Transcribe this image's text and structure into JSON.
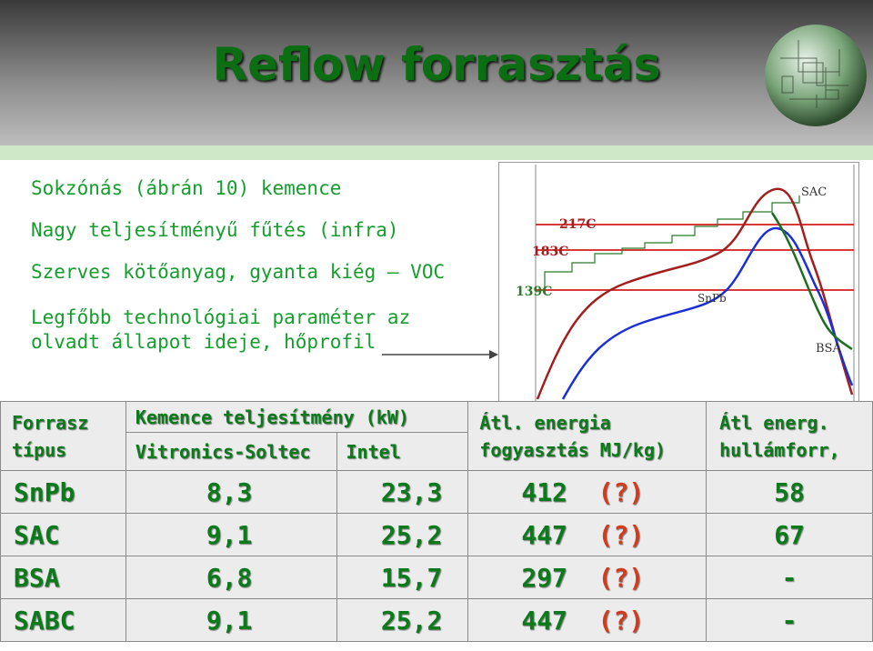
{
  "title": "Reflow forrasztás",
  "bullets": [
    "Sokzónás (ábrán 10) kemence",
    "Nagy teljesítményű fűtés (infra)",
    "Szerves kötőanyag, gyanta kiég – VOC",
    "Legfőbb technológiai paraméter az",
    "olvadt állapot ideje, hőprofil"
  ],
  "chart": {
    "temp_labels": [
      "139C",
      "183C",
      "217C"
    ],
    "curve_labels": [
      "SAC",
      "SnPb",
      "BSA"
    ],
    "colors": {
      "SAC": "#a31e1e",
      "SnPb": "#1b2fd6",
      "BSA": "#1f6e1f",
      "redline": "#d83a3a"
    }
  },
  "table": {
    "headers": {
      "col1_line1": "Forrasz",
      "col1_line2": "típus",
      "col2_top": "Kemence teljesítmény (kW)",
      "col2_sub1": "Vitronics-Soltec",
      "col2_sub2": "Intel",
      "col3_line1": "Átl. energia",
      "col3_line2": "fogyasztás MJ/kg)",
      "col4_line1": "Átl energ.",
      "col4_line2": "hullámforr,"
    },
    "rows": [
      {
        "type": "SnPb",
        "vitronics": "8,3",
        "intel": "23,3",
        "energy": "412",
        "q": "(?)",
        "wave": "58"
      },
      {
        "type": "SAC",
        "vitronics": "9,1",
        "intel": "25,2",
        "energy": "447",
        "q": "(?)",
        "wave": "67"
      },
      {
        "type": "BSA",
        "vitronics": "6,8",
        "intel": "15,7",
        "energy": "297",
        "q": "(?)",
        "wave": "-"
      },
      {
        "type": "SABC",
        "vitronics": "9,1",
        "intel": "25,2",
        "energy": "447",
        "q": "(?)",
        "wave": "-"
      }
    ]
  }
}
